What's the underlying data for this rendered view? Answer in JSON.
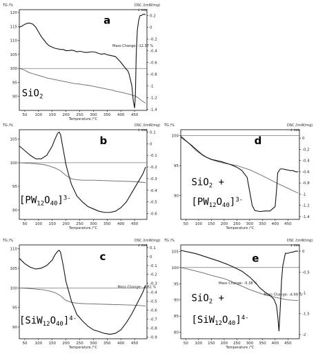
{
  "chart_data": [
    {
      "id": "a",
      "type": "line",
      "panel_letter": "a",
      "compound": {
        "base": "SiO",
        "sub": "2",
        "tail": "",
        "sup": ""
      },
      "y_left_label": "TG /%",
      "y_right_label": "DSC /(mW/mg)",
      "right_arrow_label": "↓ exo",
      "xlabel": "Temperature /°C",
      "x_ticks": [
        50,
        100,
        150,
        200,
        250,
        300,
        350,
        400,
        450
      ],
      "xlim": [
        30,
        495
      ],
      "y_left_ticks": [
        90,
        95,
        100,
        105,
        110,
        115,
        120
      ],
      "ylim_left": [
        85,
        121
      ],
      "y_right_ticks": [
        0.2,
        0.0,
        -0.2,
        -0.4,
        -0.6,
        -0.8,
        -1.0,
        -1.2,
        -1.4
      ],
      "ylim_right": [
        -1.42,
        0.3
      ],
      "annotation": "Mass Change: -12.37 %",
      "series": [
        {
          "axis": "left",
          "x": [
            30,
            40,
            50,
            60,
            70,
            80,
            90,
            100,
            110,
            120,
            130,
            140,
            150,
            160,
            170,
            180,
            190,
            200,
            210,
            220,
            230,
            240,
            250,
            260,
            270,
            280,
            290,
            300,
            310,
            320,
            330,
            340,
            350,
            360,
            370,
            380,
            390,
            400,
            410,
            420,
            430,
            440,
            450,
            460,
            470,
            480,
            490
          ],
          "y": [
            100,
            99.7,
            99.3,
            98.8,
            98.4,
            98.1,
            97.8,
            97.5,
            97.2,
            96.9,
            96.6,
            96.4,
            96.2,
            96.0,
            95.8,
            95.6,
            95.4,
            95.2,
            95.0,
            94.8,
            94.6,
            94.5,
            94.4,
            94.2,
            94.1,
            94.0,
            93.8,
            93.6,
            93.4,
            93.2,
            93.0,
            92.8,
            92.6,
            92.4,
            92.2,
            91.9,
            91.7,
            91.5,
            91.3,
            91.0,
            90.8,
            90.5,
            90.2,
            89.7,
            88.9,
            88.2,
            87.63
          ]
        },
        {
          "axis": "right",
          "x": [
            30,
            40,
            50,
            60,
            70,
            80,
            90,
            100,
            110,
            120,
            130,
            140,
            150,
            160,
            170,
            180,
            190,
            200,
            210,
            220,
            230,
            240,
            250,
            260,
            270,
            280,
            290,
            300,
            310,
            320,
            330,
            340,
            350,
            360,
            370,
            380,
            390,
            400,
            410,
            420,
            425,
            430,
            435,
            440,
            445,
            450,
            453,
            456,
            460,
            465,
            470,
            475,
            480,
            485,
            490
          ],
          "y": [
            0.0,
            0.02,
            0.05,
            0.07,
            0.07,
            0.05,
            0.0,
            -0.08,
            -0.16,
            -0.22,
            -0.28,
            -0.32,
            -0.34,
            -0.36,
            -0.37,
            -0.38,
            -0.38,
            -0.4,
            -0.4,
            -0.39,
            -0.4,
            -0.42,
            -0.41,
            -0.42,
            -0.43,
            -0.43,
            -0.42,
            -0.42,
            -0.43,
            -0.45,
            -0.46,
            -0.45,
            -0.47,
            -0.48,
            -0.49,
            -0.5,
            -0.55,
            -0.6,
            -0.66,
            -0.72,
            -0.74,
            -0.8,
            -0.9,
            -1.0,
            -1.25,
            -1.38,
            -1.15,
            -0.45,
            -0.05,
            0.12,
            0.2,
            0.2,
            0.22,
            0.22,
            0.22
          ]
        }
      ]
    },
    {
      "id": "b",
      "type": "line",
      "panel_letter": "b",
      "compound": {
        "base": "[PW",
        "sub": "12",
        "tail": "O",
        "sub2": "40",
        "close": "]",
        "sup": "3-"
      },
      "y_left_label": "TG /%",
      "y_right_label": "DSC /(mW/mg)",
      "right_arrow_label": "↓ exo",
      "xlabel": "Temperature /°C",
      "x_ticks": [
        50,
        100,
        150,
        200,
        250,
        300,
        350,
        400,
        450
      ],
      "xlim": [
        30,
        495
      ],
      "y_left_ticks": [
        90,
        95,
        100,
        105
      ],
      "ylim_left": [
        88,
        107
      ],
      "y_right_ticks": [
        0.1,
        0.0,
        -0.1,
        -0.2,
        -0.3,
        -0.4,
        -0.5,
        -0.6
      ],
      "ylim_right": [
        -0.65,
        0.12
      ],
      "series": [
        {
          "axis": "left",
          "x": [
            30,
            60,
            90,
            120,
            140,
            160,
            180,
            200,
            220,
            240,
            260,
            300,
            350,
            400,
            450,
            490
          ],
          "y": [
            100.0,
            99.9,
            99.8,
            99.6,
            99.3,
            98.9,
            98.3,
            97.3,
            96.6,
            96.4,
            96.3,
            96.3,
            96.2,
            96.1,
            96.0,
            95.8
          ]
        },
        {
          "axis": "right",
          "x": [
            30,
            50,
            70,
            90,
            110,
            130,
            150,
            160,
            170,
            175,
            180,
            190,
            200,
            210,
            220,
            240,
            260,
            280,
            300,
            320,
            340,
            360,
            380,
            400,
            420,
            440,
            460,
            480,
            490
          ],
          "y": [
            -0.02,
            -0.06,
            -0.1,
            -0.13,
            -0.13,
            -0.1,
            -0.02,
            0.04,
            0.09,
            0.1,
            0.08,
            -0.05,
            -0.18,
            -0.27,
            -0.35,
            -0.45,
            -0.5,
            -0.54,
            -0.56,
            -0.58,
            -0.59,
            -0.59,
            -0.58,
            -0.55,
            -0.5,
            -0.42,
            -0.34,
            -0.26,
            -0.2
          ]
        }
      ]
    },
    {
      "id": "c",
      "type": "line",
      "panel_letter": "c",
      "compound": {
        "base": "[SiW",
        "sub": "12",
        "tail": "O",
        "sub2": "40",
        "close": "]",
        "sup": "4-"
      },
      "y_left_label": "TG /%",
      "y_right_label": "DSC /(mW/mg)",
      "right_arrow_label": "↓ exo",
      "xlabel": "Temperature /°C",
      "x_ticks": [
        50,
        100,
        150,
        200,
        250,
        300,
        350,
        400,
        450
      ],
      "xlim": [
        30,
        495
      ],
      "y_left_ticks": [
        90,
        95,
        100,
        105,
        110
      ],
      "ylim_left": [
        87,
        111
      ],
      "y_right_ticks": [
        0.1,
        0.0,
        -0.1,
        -0.2,
        -0.3,
        -0.4,
        -0.5,
        -0.6,
        -0.7,
        -0.8,
        -0.9
      ],
      "ylim_right": [
        -0.92,
        0.13
      ],
      "annotation": "Mass Change: -4.61 %",
      "series": [
        {
          "axis": "left",
          "x": [
            30,
            60,
            90,
            120,
            140,
            160,
            180,
            200,
            220,
            240,
            260,
            300,
            350,
            400,
            450,
            490
          ],
          "y": [
            100.0,
            99.9,
            99.7,
            99.5,
            99.2,
            98.8,
            98.0,
            96.8,
            96.3,
            96.1,
            96.0,
            95.9,
            95.8,
            95.7,
            95.6,
            95.4
          ]
        },
        {
          "axis": "right",
          "x": [
            30,
            50,
            70,
            90,
            110,
            130,
            150,
            160,
            170,
            175,
            180,
            190,
            200,
            220,
            240,
            260,
            280,
            300,
            320,
            340,
            360,
            380,
            400,
            420,
            440,
            460,
            480,
            490
          ],
          "y": [
            -0.02,
            -0.08,
            -0.12,
            -0.14,
            -0.13,
            -0.1,
            -0.04,
            0.02,
            0.06,
            0.07,
            0.05,
            -0.1,
            -0.28,
            -0.5,
            -0.65,
            -0.72,
            -0.78,
            -0.82,
            -0.84,
            -0.86,
            -0.87,
            -0.86,
            -0.82,
            -0.74,
            -0.64,
            -0.52,
            -0.4,
            -0.32
          ]
        }
      ]
    },
    {
      "id": "d",
      "type": "line",
      "panel_letter": "d",
      "compound": {
        "base": "SiO",
        "sub": "2",
        "tail": " +",
        "sup": ""
      },
      "compound2": {
        "base": "[PW",
        "sub": "12",
        "tail": "O",
        "sub2": "40",
        "close": "]",
        "sup": "3-"
      },
      "y_left_label": "TG /%",
      "y_right_label": "DSC /(mW/mg)",
      "right_arrow_label": "↓ exo",
      "xlabel": "Temperature /°C",
      "x_ticks": [
        50,
        100,
        150,
        200,
        250,
        300,
        350,
        400,
        450
      ],
      "xlim": [
        30,
        495
      ],
      "y_left_ticks": [
        90,
        95,
        100
      ],
      "ylim_left": [
        86,
        101
      ],
      "y_right_ticks": [
        0.0,
        -0.2,
        -0.4,
        -0.6,
        -0.8,
        -1.0,
        -1.2,
        -1.4
      ],
      "ylim_right": [
        -1.45,
        0.15
      ],
      "series": [
        {
          "axis": "left",
          "x": [
            30,
            60,
            90,
            120,
            150,
            180,
            200,
            250,
            300,
            350,
            400,
            450,
            490
          ],
          "y": [
            100.0,
            98.8,
            97.5,
            96.6,
            96.0,
            95.6,
            95.4,
            95.0,
            94.3,
            93.3,
            92.2,
            91.2,
            90.4
          ]
        },
        {
          "axis": "right",
          "x": [
            30,
            50,
            70,
            90,
            110,
            130,
            150,
            170,
            190,
            210,
            230,
            250,
            270,
            290,
            300,
            310,
            320,
            340,
            360,
            380,
            400,
            405,
            410,
            420,
            430,
            440,
            450,
            460,
            470,
            480,
            490
          ],
          "y": [
            0.02,
            -0.05,
            -0.12,
            -0.2,
            -0.28,
            -0.34,
            -0.38,
            -0.4,
            -0.42,
            -0.45,
            -0.48,
            -0.52,
            -0.58,
            -0.7,
            -0.95,
            -1.2,
            -1.29,
            -1.31,
            -1.3,
            -1.3,
            -1.22,
            -0.95,
            -0.62,
            -0.55,
            -0.55,
            -0.56,
            -0.57,
            -0.58,
            -0.58,
            -0.6,
            -0.6
          ]
        }
      ]
    },
    {
      "id": "e",
      "type": "line",
      "panel_letter": "e",
      "compound": {
        "base": "SiO",
        "sub": "2",
        "tail": " +",
        "sup": ""
      },
      "compound2": {
        "base": "[SiW",
        "sub": "12",
        "tail": "O",
        "sub2": "40",
        "close": "]",
        "sup": "4-"
      },
      "y_left_label": "TG /%",
      "y_right_label": "DSC /(mW/mg)",
      "right_arrow_label": "↓ exo",
      "xlabel": "Temperature /°C",
      "x_ticks": [
        50,
        100,
        150,
        200,
        250,
        300,
        350,
        400,
        450
      ],
      "xlim": [
        30,
        495
      ],
      "y_left_ticks": [
        80,
        85,
        90,
        95,
        100,
        105
      ],
      "ylim_left": [
        78,
        107
      ],
      "y_right_ticks": [
        0.0,
        -0.5,
        -1.0,
        -1.5,
        -2.0
      ],
      "ylim_right": [
        -2.1,
        0.15
      ],
      "annotation": "Mass Change: -5.38 %",
      "annotation2": "Mass Change: -4.99 %",
      "series": [
        {
          "axis": "left",
          "x": [
            30,
            60,
            90,
            120,
            150,
            180,
            200,
            230,
            250,
            300,
            350,
            400,
            450,
            490
          ],
          "y": [
            100.0,
            99.5,
            98.9,
            98.3,
            97.6,
            97.0,
            96.6,
            95.7,
            94.9,
            93.2,
            91.8,
            90.8,
            90.0,
            89.8
          ]
        },
        {
          "axis": "right",
          "x": [
            30,
            60,
            90,
            120,
            150,
            180,
            210,
            240,
            270,
            300,
            320,
            340,
            360,
            380,
            395,
            405,
            410,
            415,
            420,
            425,
            430,
            440,
            450,
            460,
            470,
            480,
            490
          ],
          "y": [
            0.02,
            -0.02,
            -0.06,
            -0.12,
            -0.18,
            -0.24,
            -0.31,
            -0.39,
            -0.48,
            -0.62,
            -0.74,
            -0.88,
            -0.98,
            -1.06,
            -1.15,
            -1.3,
            -1.55,
            -1.92,
            -1.35,
            -0.7,
            -0.35,
            -0.05,
            -0.05,
            -0.03,
            -0.02,
            0.0,
            0.0
          ]
        }
      ]
    }
  ]
}
